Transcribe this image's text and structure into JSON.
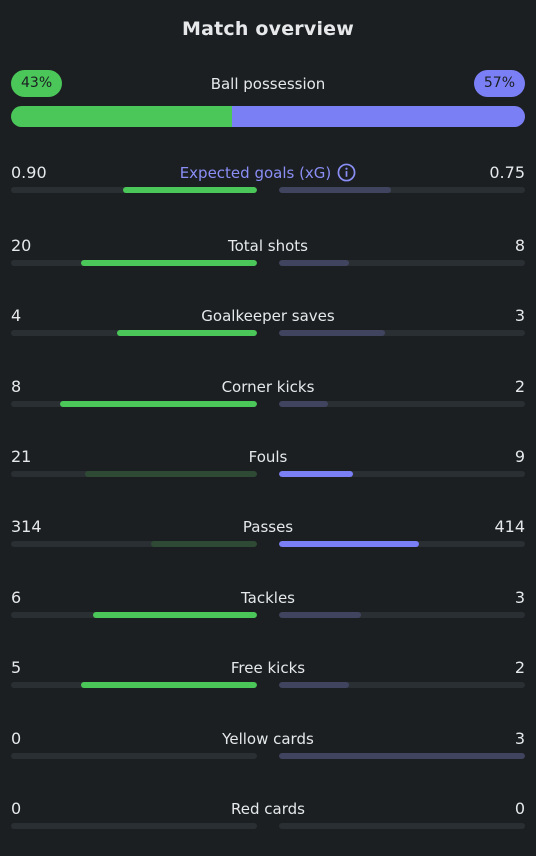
{
  "title": "Match overview",
  "possession": {
    "label": "Ball possession",
    "home_pct": "43%",
    "away_pct": "57%",
    "home_fraction": 0.43
  },
  "colors": {
    "home_strong": "#4bc659",
    "home_weak": "#2e4a34",
    "away_strong": "#7b7ff5",
    "away_weak": "#40445e",
    "track": "#2a2f33",
    "accent_label": "#8a8ef5"
  },
  "stats": [
    {
      "label": "Expected goals (xG)",
      "home": "0.90",
      "away": "0.75",
      "home_fill": 0.545,
      "away_fill": 0.455,
      "winner": "home",
      "accent": true,
      "info": true
    },
    {
      "label": "Total shots",
      "home": "20",
      "away": "8",
      "home_fill": 0.714,
      "away_fill": 0.286,
      "winner": "home"
    },
    {
      "label": "Goalkeeper saves",
      "home": "4",
      "away": "3",
      "home_fill": 0.571,
      "away_fill": 0.429,
      "winner": "home"
    },
    {
      "label": "Corner kicks",
      "home": "8",
      "away": "2",
      "home_fill": 0.8,
      "away_fill": 0.2,
      "winner": "home"
    },
    {
      "label": "Fouls",
      "home": "21",
      "away": "9",
      "home_fill": 0.7,
      "away_fill": 0.3,
      "winner": "away"
    },
    {
      "label": "Passes",
      "home": "314",
      "away": "414",
      "home_fill": 0.431,
      "away_fill": 0.569,
      "winner": "away"
    },
    {
      "label": "Tackles",
      "home": "6",
      "away": "3",
      "home_fill": 0.667,
      "away_fill": 0.333,
      "winner": "home"
    },
    {
      "label": "Free kicks",
      "home": "5",
      "away": "2",
      "home_fill": 0.714,
      "away_fill": 0.286,
      "winner": "home"
    },
    {
      "label": "Yellow cards",
      "home": "0",
      "away": "3",
      "home_fill": 0,
      "away_fill": 1,
      "winner": "home"
    },
    {
      "label": "Red cards",
      "home": "0",
      "away": "0",
      "home_fill": 0,
      "away_fill": 0,
      "winner": "none"
    }
  ]
}
